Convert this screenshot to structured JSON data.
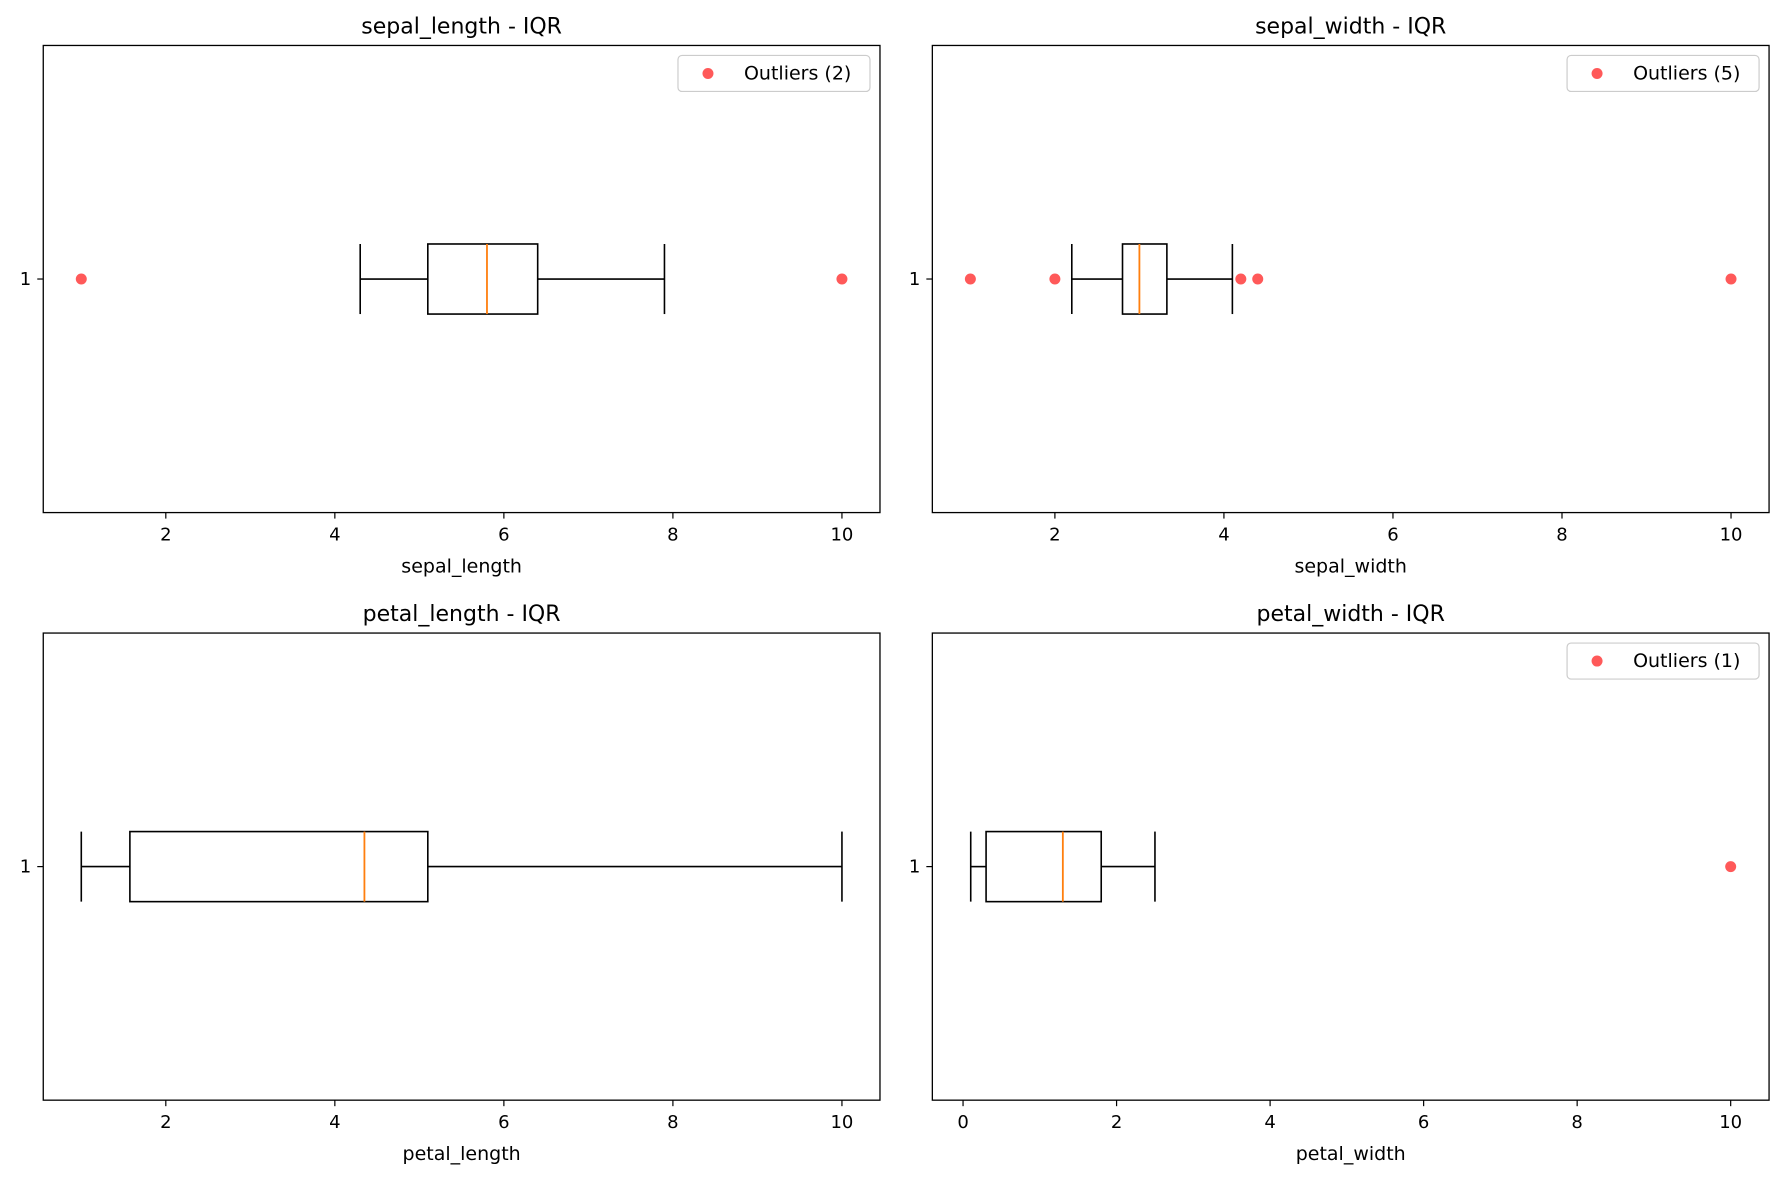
{
  "chart_data": [
    {
      "type": "boxplot",
      "title": "sepal_length - IQR",
      "xlabel": "sepal_length",
      "ylabel": "",
      "category_labels": [
        "1"
      ],
      "xlim": [
        0.55,
        10.45
      ],
      "xticks": [
        2,
        4,
        6,
        8,
        10
      ],
      "box": {
        "whisker_low": 4.3,
        "q1": 5.1,
        "median": 5.8,
        "q3": 6.4,
        "whisker_high": 7.9
      },
      "outliers": [
        1.0,
        10.0
      ],
      "legend": {
        "label": "Outliers (2)",
        "position": "top-right"
      },
      "grid": false
    },
    {
      "type": "boxplot",
      "title": "sepal_width - IQR",
      "xlabel": "sepal_width",
      "ylabel": "",
      "category_labels": [
        "1"
      ],
      "xlim": [
        0.55,
        10.45
      ],
      "xticks": [
        2,
        4,
        6,
        8,
        10
      ],
      "box": {
        "whisker_low": 2.2,
        "q1": 2.8,
        "median": 3.0,
        "q3": 3.325,
        "whisker_high": 4.1
      },
      "outliers": [
        1.0,
        2.0,
        4.2,
        4.4,
        10.0
      ],
      "legend": {
        "label": "Outliers (5)",
        "position": "top-right"
      },
      "grid": false
    },
    {
      "type": "boxplot",
      "title": "petal_length - IQR",
      "xlabel": "petal_length",
      "ylabel": "",
      "category_labels": [
        "1"
      ],
      "xlim": [
        0.55,
        10.45
      ],
      "xticks": [
        2,
        4,
        6,
        8,
        10
      ],
      "box": {
        "whisker_low": 1.0,
        "q1": 1.575,
        "median": 4.35,
        "q3": 5.1,
        "whisker_high": 10.0
      },
      "outliers": [],
      "legend": null,
      "grid": false
    },
    {
      "type": "boxplot",
      "title": "petal_width - IQR",
      "xlabel": "petal_width",
      "ylabel": "",
      "category_labels": [
        "1"
      ],
      "xlim": [
        -0.4,
        10.5
      ],
      "xticks": [
        0,
        2,
        4,
        6,
        8,
        10
      ],
      "box": {
        "whisker_low": 0.1,
        "q1": 0.3,
        "median": 1.3,
        "q3": 1.8,
        "whisker_high": 2.5
      },
      "outliers": [
        10.0
      ],
      "legend": {
        "label": "Outliers (1)",
        "position": "top-right"
      },
      "grid": false
    }
  ],
  "colors": {
    "box": "#000000",
    "median": "#ff7f0e",
    "outlier": "#ff0000",
    "legend_border": "#cccccc"
  }
}
